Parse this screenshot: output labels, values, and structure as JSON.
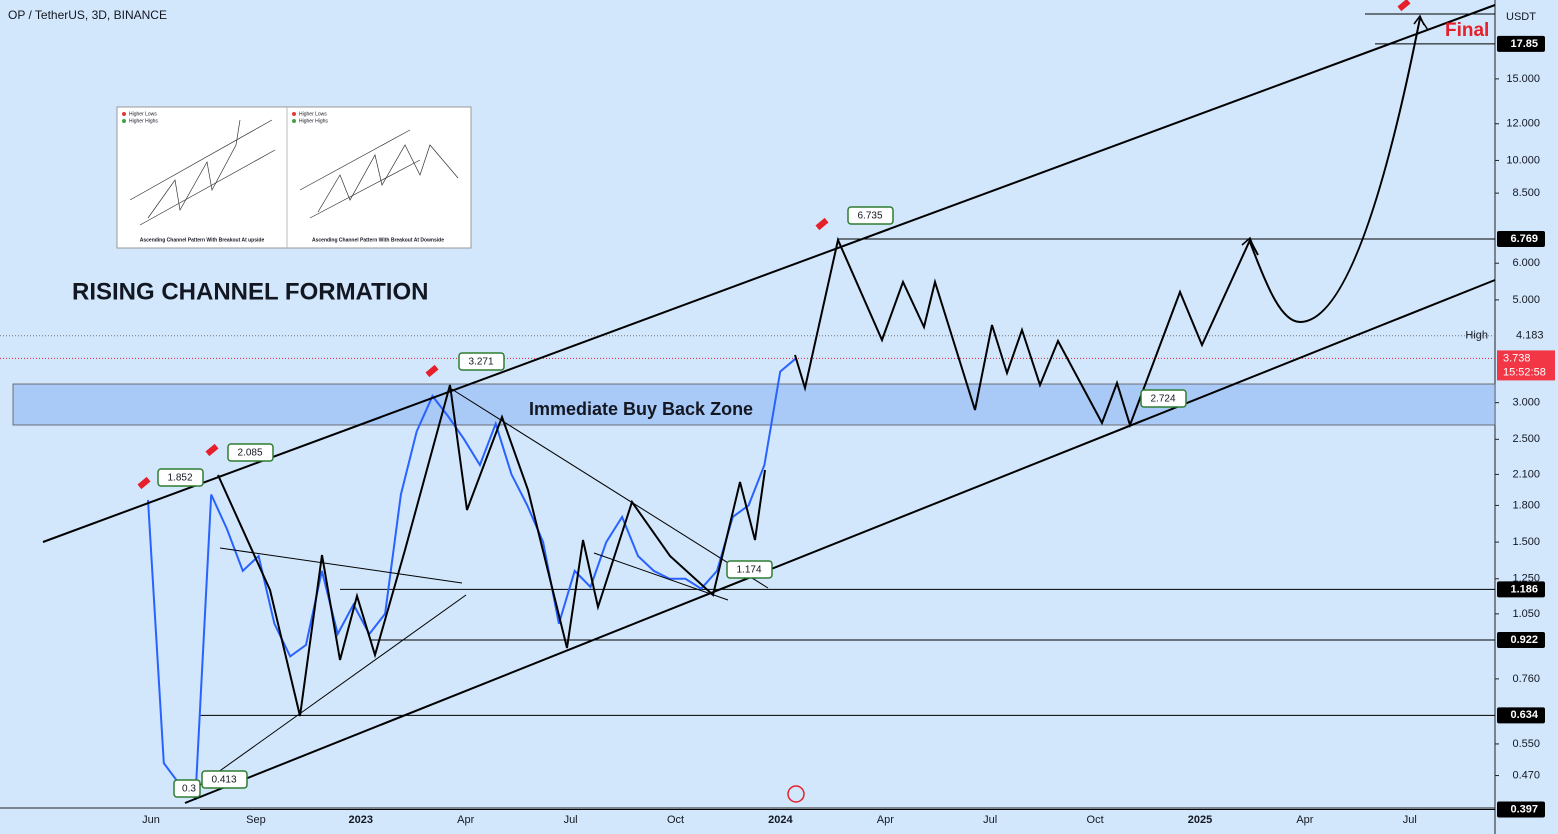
{
  "chart_data": {
    "type": "line",
    "title": "OP / TetherUS, 3D, BINANCE",
    "currency": "USDT",
    "pattern": "RISING CHANNEL FORMATION",
    "zone": "Immediate Buy Back Zone",
    "target": "Final",
    "log_scale": true,
    "color": "#2962ff",
    "x_labels": [
      "Jun",
      "Sep",
      "2023",
      "Apr",
      "Jul",
      "Oct",
      "2024",
      "Apr",
      "Jul",
      "Oct",
      "2025",
      "Apr",
      "Jul"
    ],
    "values": [
      1.85,
      0.5,
      0.45,
      0.42,
      1.9,
      1.6,
      1.3,
      1.4,
      1.0,
      0.85,
      0.9,
      1.3,
      0.95,
      1.1,
      0.95,
      1.05,
      1.9,
      2.6,
      3.1,
      2.8,
      2.5,
      2.2,
      2.7,
      2.1,
      1.8,
      1.5,
      1.0,
      1.3,
      1.2,
      1.5,
      1.7,
      1.4,
      1.3,
      1.25,
      1.25,
      1.19,
      1.3,
      1.7,
      1.8,
      2.2,
      3.5,
      3.74
    ],
    "ylim": [
      0.4,
      22.2
    ],
    "yticks": [
      {
        "value": 15,
        "label": "15.000"
      },
      {
        "value": 12,
        "label": "12.000"
      },
      {
        "value": 10,
        "label": "10.000"
      },
      {
        "value": 8.5,
        "label": "8.500"
      },
      {
        "value": 6,
        "label": "6.000"
      },
      {
        "value": 5,
        "label": "5.000"
      },
      {
        "value": 3,
        "label": "3.000"
      },
      {
        "value": 2.5,
        "label": "2.500"
      },
      {
        "value": 2.1,
        "label": "2.100"
      },
      {
        "value": 1.8,
        "label": "1.800"
      },
      {
        "value": 1.5,
        "label": "1.500"
      },
      {
        "value": 1.25,
        "label": "1.250"
      },
      {
        "value": 1.05,
        "label": "1.050"
      },
      {
        "value": 0.76,
        "label": "0.760"
      },
      {
        "value": 0.55,
        "label": "0.550"
      },
      {
        "value": 0.47,
        "label": "0.470"
      }
    ],
    "levels": [
      17.85,
      6.769,
      1.186,
      0.922,
      0.634,
      0.397
    ],
    "high": {
      "label": "High",
      "value": 4.183
    },
    "last": {
      "value": 3.738,
      "countdown": "15:52:58"
    },
    "callouts": [
      "1.852",
      "2.085",
      "3.271",
      "6.735",
      "1.174",
      "0.413",
      "0.3",
      "2.724"
    ],
    "inset": {
      "legend_low": "Higher Lows",
      "legend_high": "Higher Highs",
      "caption_up": "Ascending Channel Pattern With Breakout At upside",
      "caption_down": "Ascending Channel Pattern With Breakout At Downside"
    }
  }
}
